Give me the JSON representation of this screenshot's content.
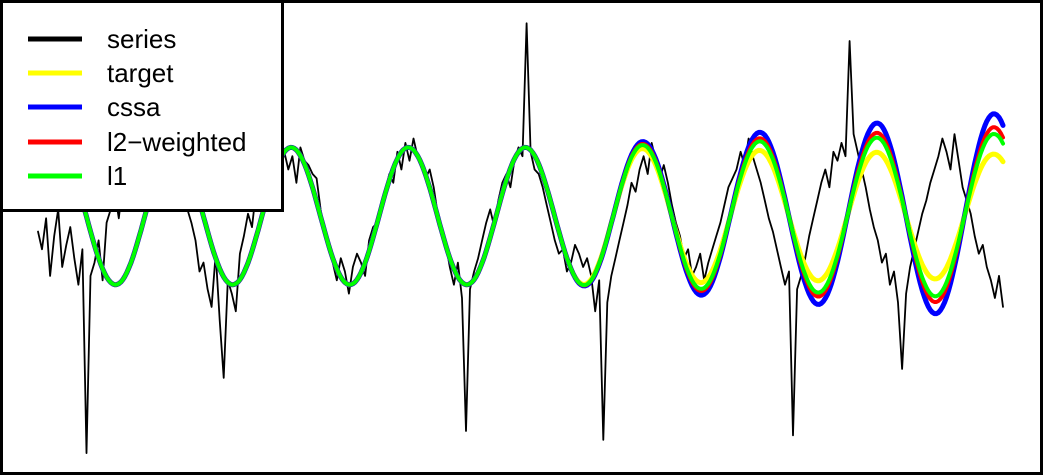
{
  "chart_data": {
    "type": "line",
    "title": "",
    "xlabel": "",
    "ylabel": "",
    "x_range": [
      1,
      240
    ],
    "ylim": [
      -6.0,
      4.2
    ],
    "legend_position": "top-left",
    "axes_shown": false,
    "series": [
      {
        "name": "series",
        "color": "#000000",
        "style": "noisy observed data",
        "values": [
          -0.8,
          -1.2,
          -0.5,
          -1.8,
          -0.9,
          -0.3,
          -1.6,
          -1.1,
          -0.7,
          -1.4,
          -2.0,
          -1.2,
          -5.8,
          -1.8,
          -1.5,
          -1.0,
          -1.9,
          -0.6,
          -0.3,
          0.1,
          -0.5,
          0.3,
          -0.2,
          0.5,
          0.4,
          0.8,
          0.2,
          0.6,
          0.4,
          0.5,
          0.7,
          0.3,
          1.2,
          0.6,
          0.9,
          0.2,
          0.4,
          -0.3,
          -0.6,
          -1.0,
          -1.7,
          -1.5,
          -2.1,
          -2.5,
          -1.3,
          -2.8,
          -4.1,
          -1.9,
          -2.2,
          -2.6,
          -1.3,
          -0.9,
          -0.4,
          -0.7,
          0.1,
          0.3,
          -0.2,
          0.6,
          0.4,
          0.8,
          0.5,
          1.0,
          0.6,
          0.9,
          0.3,
          1.1,
          0.8,
          0.7,
          0.5,
          0.4,
          -0.3,
          -0.8,
          -1.2,
          -1.5,
          -1.9,
          -1.4,
          -1.7,
          -2.2,
          -1.6,
          -1.3,
          -1.5,
          -1.8,
          -1.0,
          -0.7,
          -0.6,
          -0.2,
          0.1,
          0.5,
          0.3,
          1.0,
          0.6,
          1.2,
          0.8,
          1.3,
          0.9,
          0.7,
          0.4,
          0.6,
          0.2,
          -0.4,
          -0.8,
          -1.1,
          -1.6,
          -2.0,
          -1.5,
          -2.3,
          -5.3,
          -2.1,
          -1.7,
          -1.4,
          -1.0,
          -0.6,
          -0.3,
          -0.7,
          -0.1,
          0.3,
          0.5,
          0.2,
          0.8,
          1.1,
          0.9,
          3.9,
          1.0,
          0.6,
          0.5,
          0.2,
          -0.2,
          -0.6,
          -1.0,
          -1.3,
          -1.2,
          -1.7,
          -1.5,
          -1.1,
          -1.3,
          -1.6,
          -1.4,
          -1.8,
          -2.6,
          -1.9,
          -5.5,
          -2.4,
          -1.8,
          -1.4,
          -1.0,
          -0.6,
          -0.2,
          0.3,
          0.1,
          0.6,
          0.9,
          0.5,
          1.2,
          0.8,
          0.4,
          0.7,
          0.3,
          -0.2,
          -0.6,
          -0.9,
          -1.4,
          -1.2,
          -1.8,
          -1.6,
          -1.3,
          -1.9,
          -1.5,
          -1.2,
          -0.9,
          -0.6,
          -0.2,
          0.2,
          0.4,
          0.6,
          1.0,
          0.7,
          1.3,
          0.9,
          0.6,
          0.3,
          -0.1,
          -0.5,
          -0.8,
          -1.2,
          -1.6,
          -2.0,
          -1.7,
          -5.4,
          -2.1,
          -1.8,
          -1.4,
          -0.9,
          -0.5,
          -0.1,
          0.3,
          0.6,
          0.2,
          1.0,
          0.8,
          1.2,
          0.9,
          3.5,
          1.4,
          1.0,
          0.6,
          0.2,
          -0.3,
          -0.7,
          -1.0,
          -1.5,
          -1.3,
          -2.0,
          -1.7,
          -2.4,
          -3.9,
          -2.2,
          -1.6,
          -1.2,
          -0.8,
          -0.4,
          -0.1,
          0.3,
          0.6,
          0.9,
          1.3,
          1.0,
          0.6,
          1.4,
          0.8,
          0.2,
          -0.1,
          -0.4,
          -0.9,
          -1.3,
          -1.1,
          -1.6,
          -1.9,
          -2.3,
          -1.8,
          -2.5
        ]
      },
      {
        "name": "target",
        "color": "#ffff00",
        "amplitude_start": 1.0,
        "amplitude_end": 0.9
      },
      {
        "name": "cssa",
        "color": "#0000ff",
        "amplitude_start": 1.0,
        "amplitude_end": 1.5
      },
      {
        "name": "l2−weighted",
        "color": "#ff0000",
        "amplitude_start": 1.0,
        "amplitude_end": 1.3
      },
      {
        "name": "l1",
        "color": "#00ff00",
        "amplitude_start": 1.0,
        "amplitude_end": 1.2
      }
    ],
    "smooth_period": 29,
    "smooth_phase": 0.55
  }
}
